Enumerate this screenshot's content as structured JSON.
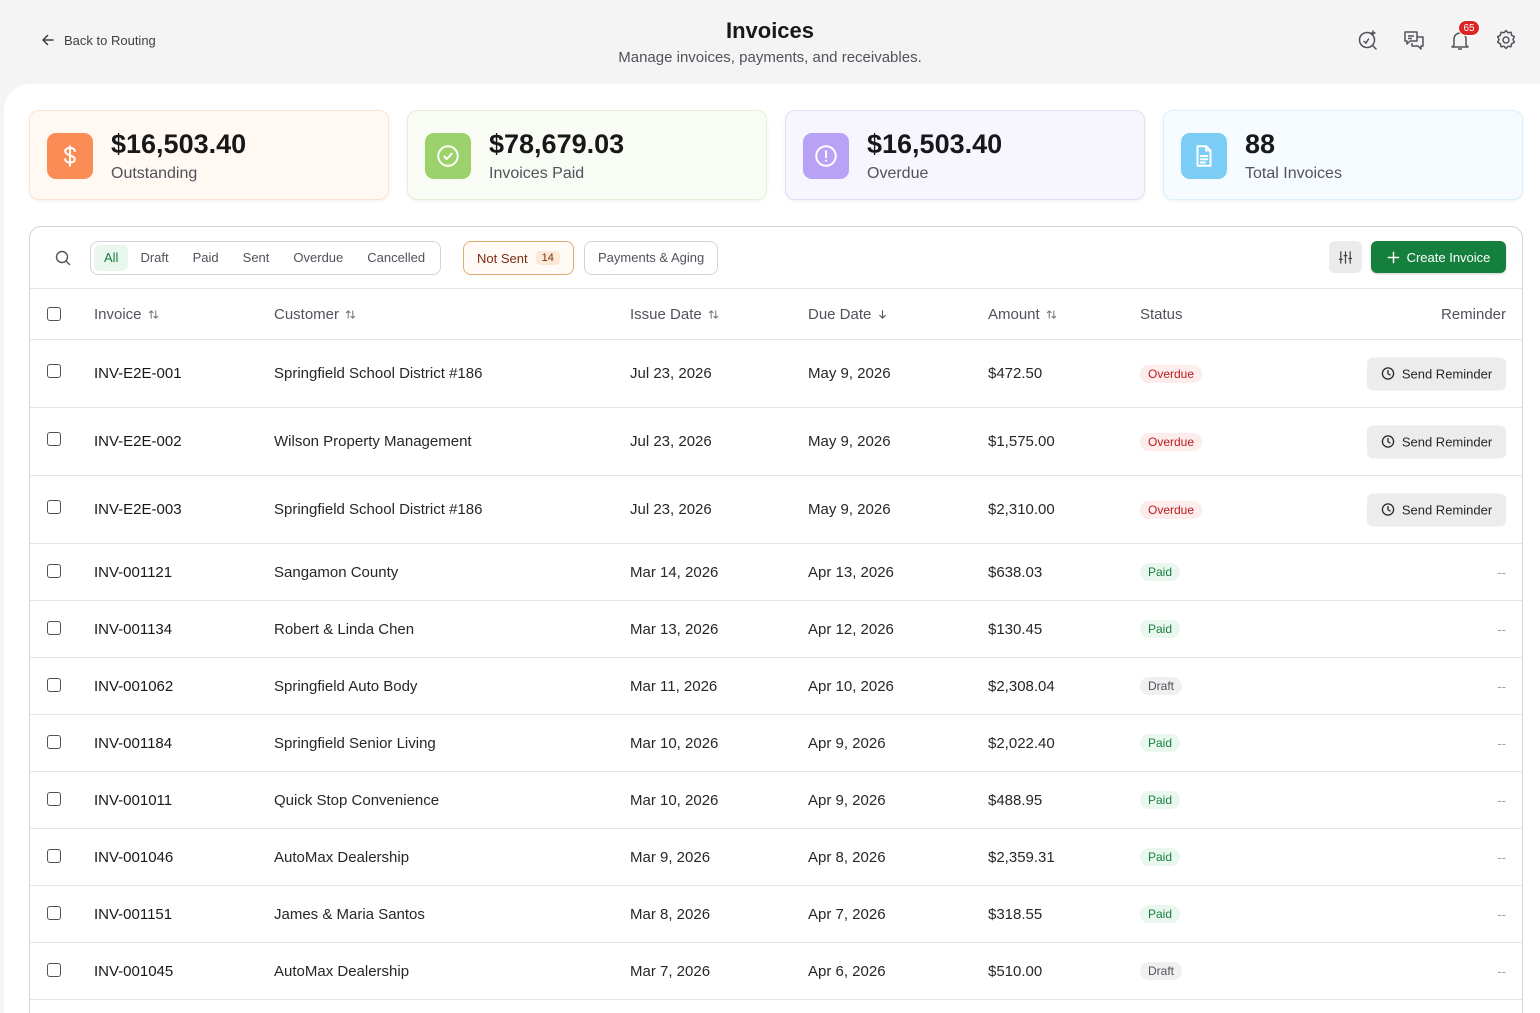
{
  "header": {
    "back_label": "Back to Routing",
    "title": "Invoices",
    "subtitle": "Manage invoices, payments, and receivables.",
    "notifications_count": "65",
    "icons": [
      "ai-search-icon",
      "messages-icon",
      "bell-icon",
      "gear-icon"
    ]
  },
  "stats": [
    {
      "value": "$16,503.40",
      "label": "Outstanding",
      "icon": "dollar-icon",
      "color": "#fb8c55"
    },
    {
      "value": "$78,679.03",
      "label": "Invoices Paid",
      "icon": "check-circle-icon",
      "color": "#9cd16b"
    },
    {
      "value": "$16,503.40",
      "label": "Overdue",
      "icon": "alert-circle-icon",
      "color": "#b8a2f5"
    },
    {
      "value": "88",
      "label": "Total Invoices",
      "icon": "document-icon",
      "color": "#7ccdf5"
    }
  ],
  "toolbar": {
    "tabs": [
      "All",
      "Draft",
      "Paid",
      "Sent",
      "Overdue",
      "Cancelled"
    ],
    "active_tab": "All",
    "not_sent_label": "Not Sent",
    "not_sent_count": "14",
    "payments_aging_label": "Payments & Aging",
    "create_label": "Create Invoice"
  },
  "table": {
    "columns": {
      "invoice": "Invoice",
      "customer": "Customer",
      "issue_date": "Issue Date",
      "due_date": "Due Date",
      "amount": "Amount",
      "status": "Status",
      "reminder": "Reminder"
    },
    "reminder_label": "Send Reminder",
    "no_reminder": "--",
    "rows": [
      {
        "invoice": "INV-E2E-001",
        "customer": "Springfield School District #186",
        "issue": "Jul 23, 2026",
        "due": "May 9, 2026",
        "amount": "$472.50",
        "status": "Overdue"
      },
      {
        "invoice": "INV-E2E-002",
        "customer": "Wilson Property Management",
        "issue": "Jul 23, 2026",
        "due": "May 9, 2026",
        "amount": "$1,575.00",
        "status": "Overdue"
      },
      {
        "invoice": "INV-E2E-003",
        "customer": "Springfield School District #186",
        "issue": "Jul 23, 2026",
        "due": "May 9, 2026",
        "amount": "$2,310.00",
        "status": "Overdue"
      },
      {
        "invoice": "INV-001121",
        "customer": "Sangamon County",
        "issue": "Mar 14, 2026",
        "due": "Apr 13, 2026",
        "amount": "$638.03",
        "status": "Paid"
      },
      {
        "invoice": "INV-001134",
        "customer": "Robert & Linda Chen",
        "issue": "Mar 13, 2026",
        "due": "Apr 12, 2026",
        "amount": "$130.45",
        "status": "Paid"
      },
      {
        "invoice": "INV-001062",
        "customer": "Springfield Auto Body",
        "issue": "Mar 11, 2026",
        "due": "Apr 10, 2026",
        "amount": "$2,308.04",
        "status": "Draft"
      },
      {
        "invoice": "INV-001184",
        "customer": "Springfield Senior Living",
        "issue": "Mar 10, 2026",
        "due": "Apr 9, 2026",
        "amount": "$2,022.40",
        "status": "Paid"
      },
      {
        "invoice": "INV-001011",
        "customer": "Quick Stop Convenience",
        "issue": "Mar 10, 2026",
        "due": "Apr 9, 2026",
        "amount": "$488.95",
        "status": "Paid"
      },
      {
        "invoice": "INV-001046",
        "customer": "AutoMax Dealership",
        "issue": "Mar 9, 2026",
        "due": "Apr 8, 2026",
        "amount": "$2,359.31",
        "status": "Paid"
      },
      {
        "invoice": "INV-001151",
        "customer": "James & Maria Santos",
        "issue": "Mar 8, 2026",
        "due": "Apr 7, 2026",
        "amount": "$318.55",
        "status": "Paid"
      },
      {
        "invoice": "INV-001045",
        "customer": "AutoMax Dealership",
        "issue": "Mar 7, 2026",
        "due": "Apr 6, 2026",
        "amount": "$510.00",
        "status": "Draft"
      }
    ]
  }
}
